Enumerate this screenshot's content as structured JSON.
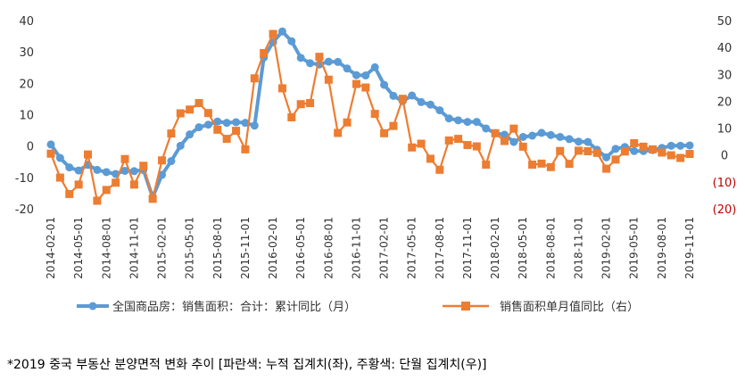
{
  "chart_data": {
    "type": "line",
    "x": [
      "2014-02-01",
      "2014-03-01",
      "2014-04-01",
      "2014-05-01",
      "2014-06-01",
      "2014-07-01",
      "2014-08-01",
      "2014-09-01",
      "2014-10-01",
      "2014-11-01",
      "2014-12-01",
      "2015-01-01",
      "2015-02-01",
      "2015-03-01",
      "2015-04-01",
      "2015-05-01",
      "2015-06-01",
      "2015-07-01",
      "2015-08-01",
      "2015-09-01",
      "2015-10-01",
      "2015-11-01",
      "2015-12-01",
      "2016-01-01",
      "2016-02-01",
      "2016-03-01",
      "2016-04-01",
      "2016-05-01",
      "2016-06-01",
      "2016-07-01",
      "2016-08-01",
      "2016-09-01",
      "2016-10-01",
      "2016-11-01",
      "2016-12-01",
      "2017-01-01",
      "2017-02-01",
      "2017-03-01",
      "2017-04-01",
      "2017-05-01",
      "2017-06-01",
      "2017-07-01",
      "2017-08-01",
      "2017-09-01",
      "2017-10-01",
      "2017-11-01",
      "2017-12-01",
      "2018-01-01",
      "2018-02-01",
      "2018-03-01",
      "2018-04-01",
      "2018-05-01",
      "2018-06-01",
      "2018-07-01",
      "2018-08-01",
      "2018-09-01",
      "2018-10-01",
      "2018-11-01",
      "2018-12-01",
      "2019-01-01",
      "2019-02-01",
      "2019-03-01",
      "2019-04-01",
      "2019-05-01",
      "2019-06-01",
      "2019-07-01",
      "2019-08-01",
      "2019-09-01",
      "2019-10-01",
      "2019-11-01"
    ],
    "x_tick_labels": [
      "2014-02-01",
      "2014-05-01",
      "2014-08-01",
      "2014-11-01",
      "2015-02-01",
      "2015-05-01",
      "2015-08-01",
      "2015-11-01",
      "2016-02-01",
      "2016-05-01",
      "2016-08-01",
      "2016-11-01",
      "2017-02-01",
      "2017-05-01",
      "2017-08-01",
      "2017-11-01",
      "2018-02-01",
      "2018-05-01",
      "2018-08-01",
      "2018-11-01",
      "2019-02-01",
      "2019-05-01",
      "2019-08-01",
      "2019-11-01"
    ],
    "y_left": {
      "range": [
        -20,
        40
      ],
      "ticks": [
        40,
        30,
        20,
        10,
        0,
        -10,
        -20
      ],
      "tick_labels": [
        "40",
        "30",
        "20",
        "10",
        "0",
        "-10",
        "-20"
      ]
    },
    "y_right": {
      "range": [
        -20,
        50
      ],
      "ticks": [
        50,
        40,
        30,
        20,
        10,
        0,
        -10,
        -20
      ],
      "tick_labels": [
        "50",
        "40",
        "30",
        "20",
        "10",
        "0",
        "(10)",
        "(20)"
      ],
      "negative_color": "#c00000"
    },
    "grid": false,
    "legend_position": "bottom",
    "series": [
      {
        "name": "全国商品房：销售面积：合计：累计同比（月）",
        "axis": "left",
        "color": "#5b9bd5",
        "marker": "circle",
        "values": [
          0.5,
          -3.8,
          -6.8,
          -7.8,
          -6.0,
          -7.6,
          -8.3,
          -8.9,
          -7.9,
          -8.0,
          -7.6,
          -16.3,
          -9.2,
          -4.8,
          0.1,
          3.7,
          6.0,
          6.8,
          7.8,
          7.4,
          7.6,
          7.4,
          6.5,
          28.2,
          33.1,
          36.5,
          33.4,
          28.1,
          26.4,
          26.0,
          26.9,
          26.8,
          24.7,
          22.6,
          22.5,
          25.1,
          19.5,
          16.0,
          14.3,
          16.1,
          14.0,
          13.2,
          11.4,
          8.8,
          8.2,
          7.7,
          7.7,
          5.6,
          4.1,
          3.6,
          1.3,
          2.9,
          3.3,
          4.2,
          3.5,
          2.9,
          2.2,
          1.4,
          1.3,
          -1.2,
          -3.6,
          -0.9,
          -0.3,
          -1.6,
          -1.6,
          -1.3,
          -0.6,
          0.1,
          0.1,
          0.2
        ]
      },
      {
        "name": "销售面积单月值同比（右）",
        "axis": "right",
        "color": "#ed7d31",
        "marker": "square",
        "values": [
          0.5,
          -8.4,
          -14.5,
          -11.0,
          0.2,
          -17.0,
          -13.0,
          -10.3,
          -1.5,
          -11.0,
          -4.0,
          -16.3,
          -2.0,
          8.0,
          15.5,
          16.9,
          19.3,
          15.6,
          9.4,
          6.0,
          9.0,
          2.1,
          28.5,
          37.9,
          45.0,
          24.8,
          14.0,
          18.9,
          19.3,
          36.5,
          28.0,
          8.2,
          12.1,
          26.4,
          25.1,
          15.3,
          8.1,
          10.8,
          20.9,
          2.8,
          4.2,
          -1.4,
          -5.5,
          5.4,
          6.0,
          3.7,
          3.2,
          -3.6,
          8.1,
          5.2,
          9.8,
          3.1,
          -3.6,
          -3.2,
          -4.5,
          1.5,
          -3.3,
          1.6,
          1.4,
          0.8,
          -5.1,
          -1.7,
          1.3,
          4.4,
          3.1,
          2.1,
          0.9,
          -0.1,
          -1.1,
          0.4
        ]
      }
    ]
  },
  "caption": "*2019 중국 부동산 분양면적 변화 추이 [파란색: 누적 집계치(좌), 주황색: 단월 집계치(우)]"
}
